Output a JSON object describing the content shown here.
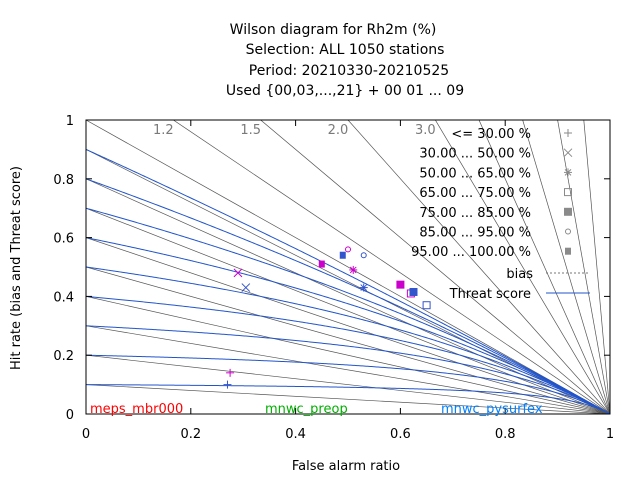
{
  "chart_data": {
    "type": "scatter",
    "title": [
      "Wilson diagram  for Rh2m (%)",
      "Selection: ALL   1050 stations",
      "Period: 20210330-20210525",
      "Used {00,03,...,21} + 00 01 ... 09"
    ],
    "xlabel": "False alarm ratio",
    "ylabel": "Hit rate (bias and Threat score)",
    "xlim": [
      0,
      1
    ],
    "ylim": [
      0,
      1
    ],
    "xticks": [
      "0",
      "0.2",
      "0.4",
      "0.6",
      "0.8",
      "1"
    ],
    "yticks": [
      "0",
      "0.2",
      "0.4",
      "0.6",
      "0.8",
      "1"
    ],
    "bias_lines": [
      0.1,
      0.2,
      0.3,
      0.4,
      0.5,
      0.6,
      0.7,
      0.8,
      0.9,
      1.0,
      1.2,
      1.5,
      2.0,
      3.0,
      4.0,
      6.0,
      10.0,
      20.0
    ],
    "bias_labels": [
      "1.2",
      "1.5",
      "2.0",
      "3.0"
    ],
    "threat_score_levels": [
      0.1,
      0.2,
      0.3,
      0.4,
      0.5,
      0.6,
      0.7,
      0.8,
      0.9
    ],
    "models": [
      {
        "name": "meps_mbr000",
        "color": "#ff0000"
      },
      {
        "name": "mnwc_preop",
        "color": "#00b000"
      },
      {
        "name": "mnwc_pysurfex",
        "color": "#0080ff"
      }
    ],
    "legend": [
      {
        "label": "<= 30.00 %",
        "marker": "plus"
      },
      {
        "label": "30.00 ... 50.00 %",
        "marker": "cross"
      },
      {
        "label": "50.00 ... 65.00 %",
        "marker": "star"
      },
      {
        "label": "65.00 ... 75.00 %",
        "marker": "square-open"
      },
      {
        "label": "75.00 ... 85.00 %",
        "marker": "square-filled"
      },
      {
        "label": "85.00 ... 95.00 %",
        "marker": "circle-open"
      },
      {
        "label": "95.00 ... 100.00 %",
        "marker": "circle-filled"
      },
      {
        "label": "bias",
        "marker": "line-dotted"
      },
      {
        "label": "Threat score",
        "marker": "line-solid"
      }
    ],
    "series": [
      {
        "model": "meps_mbr000",
        "color": "#cc00cc",
        "points": [
          {
            "class": "plus",
            "x": 0.275,
            "y": 0.14
          },
          {
            "class": "cross",
            "x": 0.29,
            "y": 0.48
          },
          {
            "class": "star",
            "x": 0.51,
            "y": 0.49
          },
          {
            "class": "square-open",
            "x": 0.62,
            "y": 0.41
          },
          {
            "class": "square-filled",
            "x": 0.6,
            "y": 0.44
          },
          {
            "class": "circle-open",
            "x": 0.5,
            "y": 0.56
          },
          {
            "class": "circle-filled",
            "x": 0.45,
            "y": 0.51
          }
        ]
      },
      {
        "model": "mnwc_pysurfex",
        "color": "#3355cc",
        "points": [
          {
            "class": "plus",
            "x": 0.27,
            "y": 0.1
          },
          {
            "class": "cross",
            "x": 0.305,
            "y": 0.43
          },
          {
            "class": "star",
            "x": 0.53,
            "y": 0.43
          },
          {
            "class": "square-open",
            "x": 0.65,
            "y": 0.37
          },
          {
            "class": "square-filled",
            "x": 0.625,
            "y": 0.415
          },
          {
            "class": "circle-open",
            "x": 0.53,
            "y": 0.54
          },
          {
            "class": "circle-filled",
            "x": 0.49,
            "y": 0.54
          }
        ]
      }
    ],
    "colors": {
      "threat": "#2255cc",
      "bias": "#555555",
      "bias_label": "#7a7a7a"
    }
  }
}
